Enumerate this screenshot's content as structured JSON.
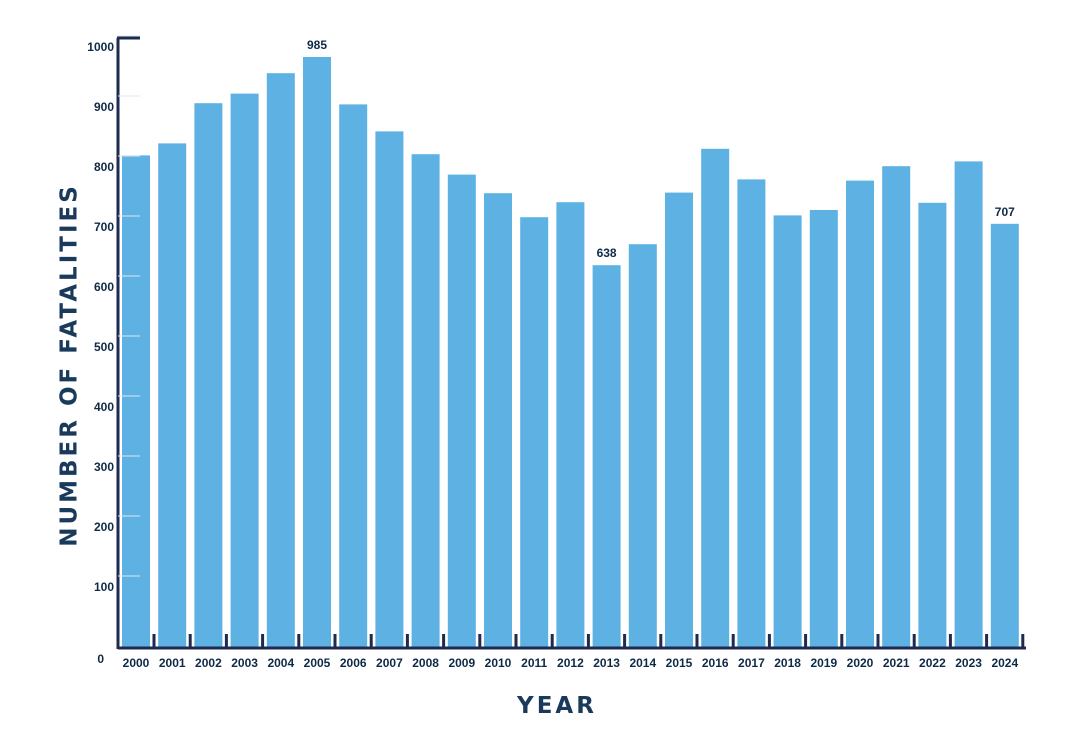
{
  "chart_data": {
    "type": "bar",
    "title": "",
    "xlabel": "YEAR",
    "ylabel": "NUMBER OF FATALITIES",
    "categories": [
      "2000",
      "2001",
      "2002",
      "2003",
      "2004",
      "2005",
      "2006",
      "2007",
      "2008",
      "2009",
      "2010",
      "2011",
      "2012",
      "2013",
      "2014",
      "2015",
      "2016",
      "2017",
      "2018",
      "2019",
      "2020",
      "2021",
      "2022",
      "2023",
      "2024"
    ],
    "values": [
      821,
      841,
      908,
      924,
      958,
      985,
      906,
      861,
      823,
      789,
      758,
      718,
      743,
      638,
      673,
      759,
      832,
      781,
      721,
      730,
      779,
      803,
      742,
      811,
      707
    ],
    "data_labels": [
      {
        "category": "2005",
        "text": "985"
      },
      {
        "category": "2013",
        "text": "638"
      },
      {
        "category": "2024",
        "text": "707"
      }
    ],
    "y_ticks": [
      "0",
      "100",
      "200",
      "300",
      "400",
      "500",
      "600",
      "700",
      "800",
      "900",
      "1000"
    ],
    "ylim": [
      0,
      1000
    ],
    "grid": false,
    "legend": "none",
    "colors": {
      "bar": "#5eb1e3",
      "axis": "#1e2a4f",
      "text": "#0e2a47",
      "label": "#1a3a5c"
    }
  }
}
